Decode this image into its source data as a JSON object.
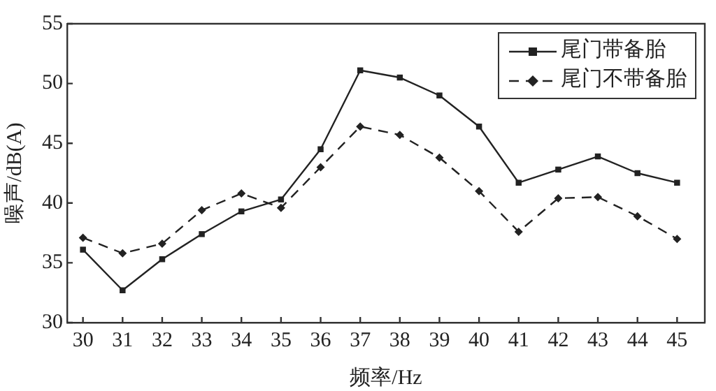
{
  "chart_data": {
    "type": "line",
    "xlabel": "频率/Hz",
    "ylabel": "噪声/dB(A)",
    "x": [
      30,
      31,
      32,
      33,
      34,
      35,
      36,
      37,
      38,
      39,
      40,
      41,
      42,
      43,
      44,
      45
    ],
    "xlim": [
      29.6,
      45.7
    ],
    "xticks": [
      30,
      31,
      32,
      33,
      34,
      35,
      36,
      37,
      38,
      39,
      40,
      41,
      42,
      43,
      44,
      45
    ],
    "ylim": [
      30,
      55
    ],
    "yticks": [
      30,
      35,
      40,
      45,
      50,
      55
    ],
    "grid": false,
    "legend": "top right",
    "series": [
      {
        "name": "尾门带备胎",
        "color": "#222222",
        "marker": "square",
        "line_style": "solid",
        "values": [
          36.1,
          32.7,
          35.3,
          37.4,
          39.3,
          40.3,
          44.5,
          51.1,
          50.5,
          49.0,
          46.4,
          41.7,
          42.8,
          43.9,
          42.5,
          41.7
        ]
      },
      {
        "name": "尾门不带备胎",
        "color": "#222222",
        "marker": "diamond",
        "line_style": "dashed",
        "values": [
          37.1,
          35.8,
          36.6,
          39.4,
          40.8,
          39.6,
          43.0,
          46.4,
          45.7,
          43.8,
          41.0,
          37.6,
          40.4,
          40.5,
          38.9,
          37.0
        ]
      }
    ]
  }
}
